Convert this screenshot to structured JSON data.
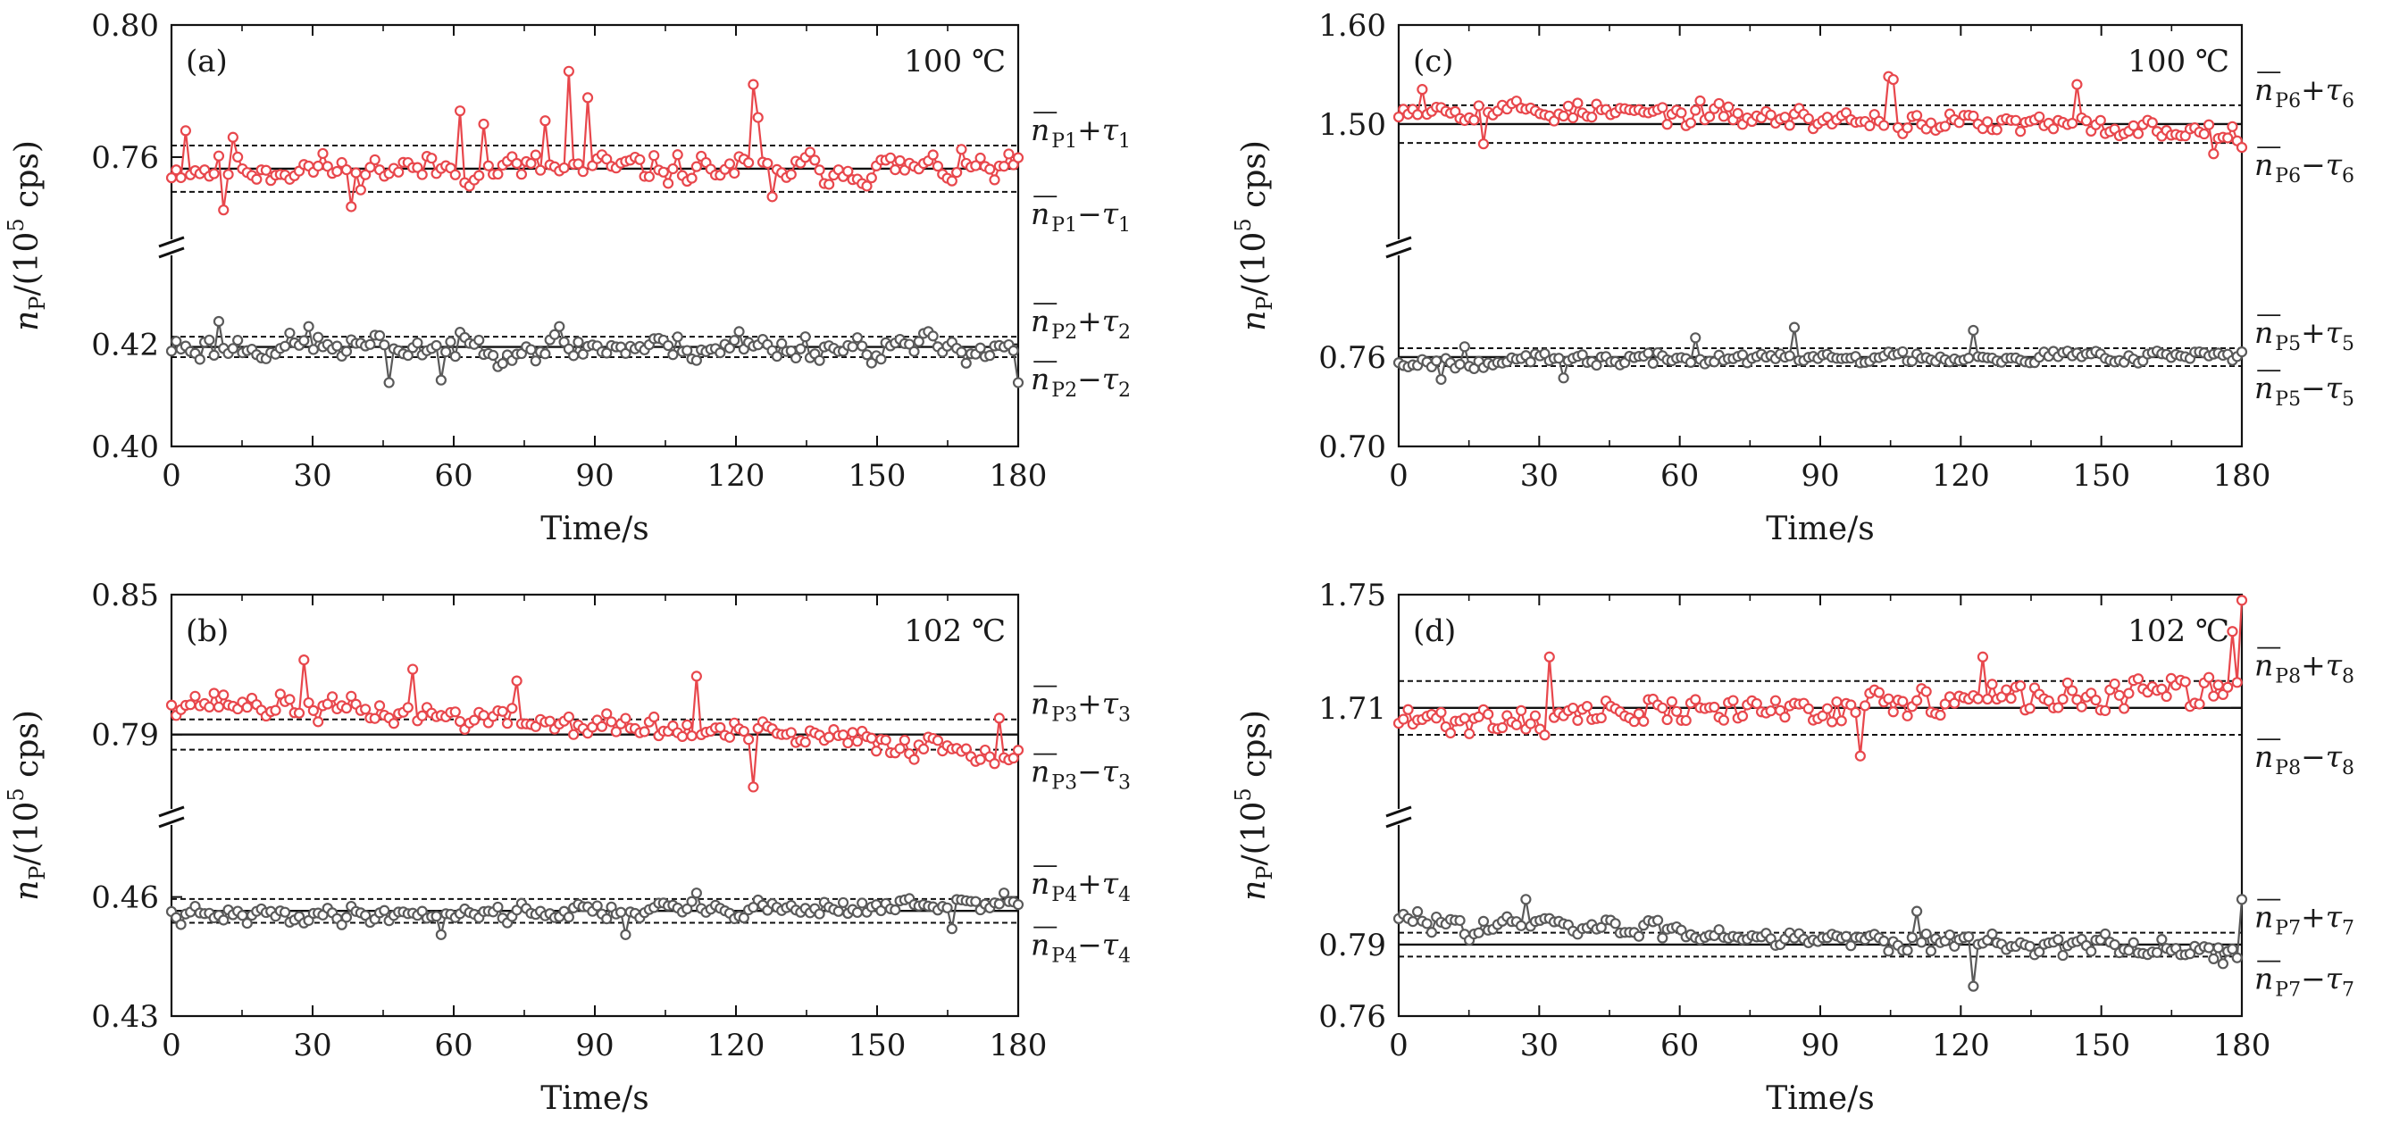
{
  "chart_data": [
    {
      "id": "a",
      "type": "line",
      "panel_label": "(a)",
      "temperature": "100 ℃",
      "xlabel": "Time/s",
      "ylabel": "n_P/(10^5 cps)",
      "ylabel_parts": {
        "symbol": "n",
        "sub": "P",
        "unit_open": "/(10",
        "exp": "5",
        "unit_close": " cps)"
      },
      "xlim": [
        0,
        180
      ],
      "x_ticks": [
        "0",
        "30",
        "60",
        "90",
        "120",
        "150",
        "180"
      ],
      "broken_axis": true,
      "upper": {
        "ylim": [
          0.74,
          0.8
        ],
        "y_ticks": [
          "0.80",
          "0.76"
        ],
        "y_tick_values": [
          0.8,
          0.76
        ],
        "mean": 0.7565,
        "upper_band": 0.7635,
        "lower_band": 0.7495,
        "label_plus": {
          "base": "n",
          "sub": "P1",
          "op": "+",
          "tau": "τ",
          "tau_sub": "1"
        },
        "label_minus": {
          "base": "n",
          "sub": "P1",
          "op": "−",
          "tau": "τ",
          "tau_sub": "1"
        },
        "color": "#e8474c",
        "seed": 11,
        "noise": 0.0038,
        "trend": [
          0,
          0
        ],
        "points": 180,
        "spikes": [
          [
            3,
            0.768
          ],
          [
            13,
            0.766
          ],
          [
            61,
            0.774
          ],
          [
            66,
            0.77
          ],
          [
            79,
            0.771
          ],
          [
            84,
            0.786
          ],
          [
            88,
            0.778
          ],
          [
            123,
            0.782
          ],
          [
            124,
            0.772
          ],
          [
            38,
            0.745
          ],
          [
            11,
            0.744
          ],
          [
            127,
            0.748
          ]
        ]
      },
      "lower": {
        "ylim": [
          0.4,
          0.435
        ],
        "y_ticks": [
          "0.42",
          "0.40"
        ],
        "y_tick_values": [
          0.42,
          0.4
        ],
        "mean": 0.4195,
        "upper_band": 0.4215,
        "lower_band": 0.4175,
        "label_plus": {
          "base": "n",
          "sub": "P2",
          "op": "+",
          "tau": "τ",
          "tau_sub": "2"
        },
        "label_minus": {
          "base": "n",
          "sub": "P2",
          "op": "−",
          "tau": "τ",
          "tau_sub": "2"
        },
        "color": "#5a5a5a",
        "seed": 23,
        "noise": 0.0022,
        "trend": [
          0,
          0
        ],
        "points": 180,
        "spikes": [
          [
            10,
            0.4245
          ],
          [
            29,
            0.4235
          ],
          [
            82,
            0.4235
          ],
          [
            120,
            0.4225
          ],
          [
            179,
            0.4125
          ],
          [
            46,
            0.4125
          ],
          [
            57,
            0.413
          ]
        ]
      }
    },
    {
      "id": "b",
      "type": "line",
      "panel_label": "(b)",
      "temperature": "102 ℃",
      "xlabel": "Time/s",
      "ylabel": "n_P/(10^5 cps)",
      "ylabel_parts": {
        "symbol": "n",
        "sub": "P",
        "unit_open": "/(10",
        "exp": "5",
        "unit_close": " cps)"
      },
      "xlim": [
        0,
        180
      ],
      "x_ticks": [
        "0",
        "30",
        "60",
        "90",
        "120",
        "150",
        "180"
      ],
      "broken_axis": true,
      "upper": {
        "ylim": [
          0.765,
          0.85
        ],
        "y_ticks": [
          "0.85",
          "0.79"
        ],
        "y_tick_values": [
          0.85,
          0.79
        ],
        "mean": 0.79,
        "upper_band": 0.7965,
        "lower_band": 0.7835,
        "label_plus": {
          "base": "n",
          "sub": "P3",
          "op": "+",
          "tau": "τ",
          "tau_sub": "3"
        },
        "label_minus": {
          "base": "n",
          "sub": "P3",
          "op": "−",
          "tau": "τ",
          "tau_sub": "3"
        },
        "color": "#e8474c",
        "seed": 37,
        "noise": 0.0045,
        "trend": [
          0.805,
          0.783
        ],
        "points": 180,
        "spikes": [
          [
            28,
            0.822
          ],
          [
            51,
            0.818
          ],
          [
            73,
            0.813
          ],
          [
            111,
            0.815
          ],
          [
            123,
            0.7675
          ],
          [
            175,
            0.797
          ]
        ]
      },
      "lower": {
        "ylim": [
          0.43,
          0.475
        ],
        "y_ticks": [
          "0.46",
          "0.43"
        ],
        "y_tick_values": [
          0.46,
          0.43
        ],
        "mean": 0.4565,
        "upper_band": 0.4595,
        "lower_band": 0.4535,
        "label_plus": {
          "base": "n",
          "sub": "P4",
          "op": "+",
          "tau": "τ",
          "tau_sub": "4"
        },
        "label_minus": {
          "base": "n",
          "sub": "P4",
          "op": "−",
          "tau": "τ",
          "tau_sub": "4"
        },
        "color": "#5a5a5a",
        "seed": 41,
        "noise": 0.0018,
        "trend": [
          0.455,
          0.458
        ],
        "points": 180,
        "spikes": [
          [
            111,
            0.461
          ],
          [
            96,
            0.4505
          ],
          [
            57,
            0.4505
          ],
          [
            165,
            0.452
          ],
          [
            176,
            0.461
          ]
        ]
      }
    },
    {
      "id": "c",
      "type": "line",
      "panel_label": "(c)",
      "temperature": "100 ℃",
      "xlabel": "Time/s",
      "ylabel": "n_P/(10^5 cps)",
      "ylabel_parts": {
        "symbol": "n",
        "sub": "P",
        "unit_open": "/(10",
        "exp": "5",
        "unit_close": " cps)"
      },
      "xlim": [
        0,
        180
      ],
      "x_ticks": [
        "0",
        "30",
        "60",
        "90",
        "120",
        "150",
        "180"
      ],
      "broken_axis": true,
      "upper": {
        "ylim": [
          1.4,
          1.6
        ],
        "y_ticks": [
          "1.60",
          "1.50"
        ],
        "y_tick_values": [
          1.6,
          1.5
        ],
        "mean": 1.5,
        "upper_band": 1.519,
        "lower_band": 1.481,
        "label_plus": {
          "base": "n",
          "sub": "P6",
          "op": "+",
          "tau": "τ",
          "tau_sub": "6"
        },
        "label_minus": {
          "base": "n",
          "sub": "P6",
          "op": "−",
          "tau": "τ",
          "tau_sub": "6"
        },
        "color": "#e8474c",
        "seed": 53,
        "noise": 0.009,
        "trend": [
          1.518,
          1.492
        ],
        "points": 180,
        "spikes": [
          [
            5,
            1.535
          ],
          [
            104,
            1.548
          ],
          [
            105,
            1.545
          ],
          [
            144,
            1.54
          ],
          [
            173,
            1.47
          ],
          [
            18,
            1.48
          ]
        ]
      },
      "lower": {
        "ylim": [
          0.7,
          0.82
        ],
        "y_ticks": [
          "0.76",
          "0.70"
        ],
        "y_tick_values": [
          0.76,
          0.7
        ],
        "mean": 0.76,
        "upper_band": 0.766,
        "lower_band": 0.754,
        "label_plus": {
          "base": "n",
          "sub": "P5",
          "op": "+",
          "tau": "τ",
          "tau_sub": "5"
        },
        "label_minus": {
          "base": "n",
          "sub": "P5",
          "op": "−",
          "tau": "τ",
          "tau_sub": "5"
        },
        "color": "#5a5a5a",
        "seed": 67,
        "noise": 0.0035,
        "trend": [
          0.757,
          0.762
        ],
        "points": 180,
        "spikes": [
          [
            14,
            0.767
          ],
          [
            63,
            0.773
          ],
          [
            84,
            0.78
          ],
          [
            122,
            0.778
          ],
          [
            9,
            0.745
          ],
          [
            35,
            0.746
          ]
        ]
      }
    },
    {
      "id": "d",
      "type": "line",
      "panel_label": "(d)",
      "temperature": "102 ℃",
      "xlabel": "Time/s",
      "ylabel": "n_P/(10^5 cps)",
      "ylabel_parts": {
        "symbol": "n",
        "sub": "P",
        "unit_open": "/(10",
        "exp": "5",
        "unit_close": " cps)"
      },
      "xlim": [
        0,
        180
      ],
      "x_ticks": [
        "0",
        "30",
        "60",
        "90",
        "120",
        "150",
        "180"
      ],
      "broken_axis": true,
      "upper": {
        "ylim": [
          1.68,
          1.75
        ],
        "y_ticks": [
          "1.75",
          "1.71"
        ],
        "y_tick_values": [
          1.75,
          1.71
        ],
        "mean": 1.71,
        "upper_band": 1.7195,
        "lower_band": 1.7005,
        "label_plus": {
          "base": "n",
          "sub": "P8",
          "op": "+",
          "tau": "τ",
          "tau_sub": "8"
        },
        "label_minus": {
          "base": "n",
          "sub": "P8",
          "op": "−",
          "tau": "τ",
          "tau_sub": "8"
        },
        "color": "#e8474c",
        "seed": 71,
        "noise": 0.0045,
        "trend": [
          1.705,
          1.716
        ],
        "points": 180,
        "spikes": [
          [
            32,
            1.728
          ],
          [
            124,
            1.728
          ],
          [
            179,
            1.748
          ],
          [
            177,
            1.737
          ],
          [
            98,
            1.693
          ]
        ]
      },
      "lower": {
        "ylim": [
          0.76,
          0.835
        ],
        "y_ticks": [
          "0.79",
          "0.76"
        ],
        "y_tick_values": [
          0.79,
          0.76
        ],
        "mean": 0.79,
        "upper_band": 0.795,
        "lower_band": 0.785,
        "label_plus": {
          "base": "n",
          "sub": "P7",
          "op": "+",
          "tau": "τ",
          "tau_sub": "7"
        },
        "label_minus": {
          "base": "n",
          "sub": "P7",
          "op": "−",
          "tau": "τ",
          "tau_sub": "7"
        },
        "color": "#5a5a5a",
        "seed": 83,
        "noise": 0.0035,
        "trend": [
          0.8,
          0.787
        ],
        "points": 180,
        "spikes": [
          [
            27,
            0.809
          ],
          [
            110,
            0.804
          ],
          [
            122,
            0.7725
          ],
          [
            179,
            0.809
          ],
          [
            175,
            0.782
          ]
        ]
      }
    }
  ]
}
